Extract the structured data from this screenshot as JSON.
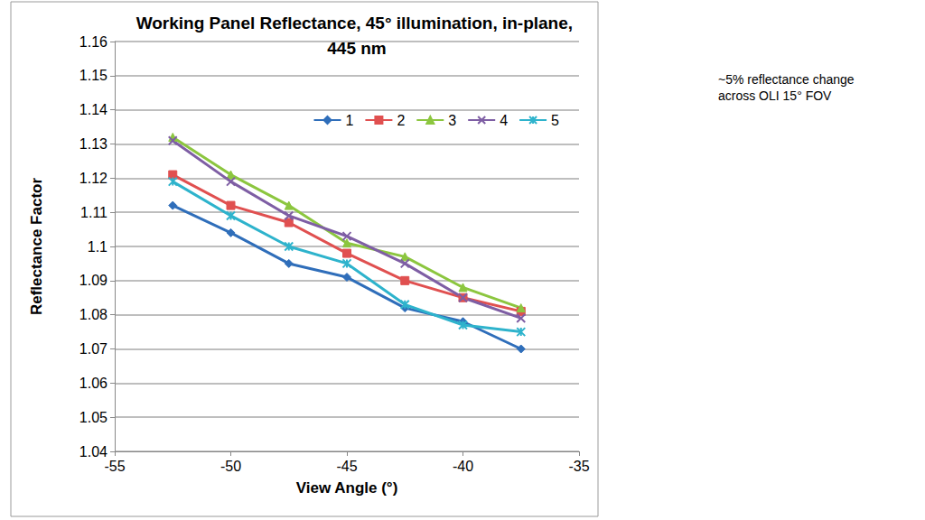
{
  "chart_data": {
    "type": "line",
    "title": "Working Panel Reflectance, 45° illumination, in-plane, 445 nm",
    "annotation": "~5% reflectance change across OLI 15° FOV",
    "xlabel": "View Angle (°)",
    "ylabel": "Reflectance Factor",
    "x": [
      -52.5,
      -50,
      -47.5,
      -45,
      -42.5,
      -40,
      -37.5
    ],
    "series": [
      {
        "name": "1",
        "color": "#2f6eba",
        "marker": "diamond",
        "values": [
          1.112,
          1.104,
          1.095,
          1.091,
          1.082,
          1.078,
          1.07
        ]
      },
      {
        "name": "2",
        "color": "#e05050",
        "marker": "square",
        "values": [
          1.121,
          1.112,
          1.107,
          1.098,
          1.09,
          1.085,
          1.081
        ]
      },
      {
        "name": "3",
        "color": "#8cc63f",
        "marker": "triangle",
        "values": [
          1.132,
          1.121,
          1.112,
          1.101,
          1.097,
          1.088,
          1.082
        ]
      },
      {
        "name": "4",
        "color": "#7e5ea4",
        "marker": "x",
        "values": [
          1.131,
          1.119,
          1.109,
          1.103,
          1.095,
          1.085,
          1.079
        ]
      },
      {
        "name": "5",
        "color": "#2eb3cc",
        "marker": "asterisk",
        "values": [
          1.119,
          1.109,
          1.1,
          1.095,
          1.083,
          1.077,
          1.075
        ]
      }
    ],
    "xlim": [
      -55,
      -35
    ],
    "xticks": [
      -55,
      -50,
      -45,
      -40,
      -35
    ],
    "ylim": [
      1.04,
      1.16
    ],
    "yticks": [
      1.04,
      1.05,
      1.06,
      1.07,
      1.08,
      1.09,
      1.1,
      1.11,
      1.12,
      1.13,
      1.14,
      1.15,
      1.16
    ],
    "grid": true,
    "legend": "upper right"
  }
}
